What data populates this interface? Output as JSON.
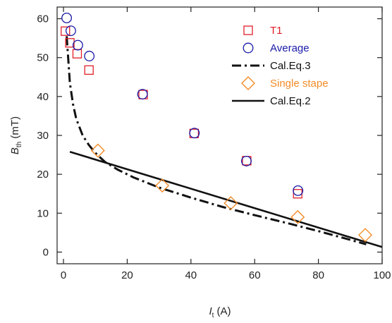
{
  "chart_data": {
    "type": "scatter",
    "title": "",
    "xlabel": {
      "var": "I",
      "sub": "t",
      "unit": " (A)"
    },
    "ylabel": {
      "var": "B",
      "sub": "th",
      "unit": " (mT)"
    },
    "xlim": [
      -2,
      100
    ],
    "ylim": [
      -3,
      63
    ],
    "x_ticks": [
      0,
      20,
      40,
      60,
      80,
      100
    ],
    "y_ticks": [
      0,
      10,
      20,
      30,
      40,
      50,
      60
    ],
    "grid": false,
    "legend_position": "top-right",
    "series": [
      {
        "name": "T1",
        "kind": "scatter",
        "marker": "square",
        "color": "#e0202a",
        "x": [
          0.6,
          2,
          4.3,
          8,
          25,
          41,
          57.5,
          73.5
        ],
        "y": [
          56.8,
          53.8,
          51,
          46.8,
          40.5,
          30.5,
          23.5,
          15
        ]
      },
      {
        "name": "Average",
        "kind": "scatter",
        "marker": "circle",
        "color": "#1a1aa8",
        "x": [
          1,
          2.3,
          4.5,
          8.1,
          24.8,
          41.1,
          57.4,
          73.6
        ],
        "y": [
          60.2,
          56.9,
          53.2,
          50.4,
          40.6,
          30.6,
          23.4,
          15.8
        ]
      },
      {
        "name": "Cal.Eq.3",
        "kind": "line",
        "dash": "dashdot",
        "color": "#111111",
        "x": [
          1,
          2,
          3,
          4,
          6,
          8,
          10,
          13,
          17,
          22,
          30,
          40,
          50,
          60,
          70,
          80,
          88,
          95
        ],
        "y": [
          55.5,
          43.5,
          38,
          34.3,
          30,
          27.5,
          25.5,
          23.2,
          21.2,
          19.2,
          16.6,
          14,
          11.6,
          9.5,
          7.5,
          5.4,
          3.6,
          2
        ]
      },
      {
        "name": "Single stape",
        "kind": "scatter",
        "marker": "diamond",
        "color": "#f28c28",
        "x": [
          10.8,
          31,
          52.5,
          73.5,
          94.7
        ],
        "y": [
          26.1,
          17.1,
          12.6,
          9,
          4.4
        ]
      },
      {
        "name": "Cal.Eq.2",
        "kind": "line",
        "dash": "solid",
        "color": "#111111",
        "x": [
          2,
          100
        ],
        "y": [
          25.8,
          1.3
        ]
      }
    ]
  }
}
